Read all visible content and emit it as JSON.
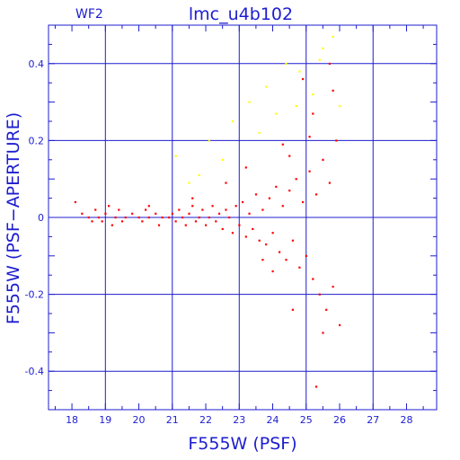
{
  "chart_data": {
    "type": "scatter",
    "title": "lmc_u4b102",
    "chip_label": "WF2",
    "xlabel": "F555W (PSF)",
    "ylabel": "F555W (PSF−APERTURE)",
    "xlim": [
      17.3,
      28.9
    ],
    "ylim": [
      -0.5,
      0.5
    ],
    "x_ticks": [
      18,
      19,
      20,
      21,
      22,
      23,
      24,
      25,
      26,
      27,
      28
    ],
    "y_ticks": [
      -0.4,
      -0.2,
      0,
      0.2,
      0.4
    ],
    "x_tick_labels": [
      "18",
      "19",
      "20",
      "21",
      "22",
      "23",
      "24",
      "25",
      "26",
      "27",
      "28"
    ],
    "y_tick_labels": [
      "-0.4",
      "-0.2",
      "0",
      "0.2",
      "0.4"
    ],
    "grid": true,
    "colors": {
      "frame": "#1d1dd0",
      "main_points": "#ff0000",
      "outlier_points": "#ffff00"
    },
    "series": [
      {
        "values": [
          [
            18.1,
            0.04
          ],
          [
            18.3,
            0.01
          ],
          [
            18.5,
            0.0
          ],
          [
            18.6,
            -0.01
          ],
          [
            18.7,
            0.02
          ],
          [
            18.8,
            0.0
          ],
          [
            18.9,
            -0.01
          ],
          [
            19.0,
            0.01
          ],
          [
            19.1,
            0.03
          ],
          [
            19.3,
            0.0
          ],
          [
            19.4,
            0.02
          ],
          [
            19.5,
            -0.01
          ],
          [
            19.6,
            0.0
          ],
          [
            19.8,
            0.01
          ],
          [
            20.0,
            0.0
          ],
          [
            20.1,
            -0.01
          ],
          [
            20.2,
            0.02
          ],
          [
            20.3,
            0.0
          ],
          [
            20.5,
            0.01
          ],
          [
            20.6,
            -0.02
          ],
          [
            20.7,
            0.0
          ],
          [
            20.9,
            0.0
          ],
          [
            21.0,
            0.01
          ],
          [
            21.1,
            -0.01
          ],
          [
            21.2,
            0.02
          ],
          [
            21.3,
            0.0
          ],
          [
            21.4,
            -0.02
          ],
          [
            21.5,
            0.01
          ],
          [
            21.6,
            0.03
          ],
          [
            21.7,
            -0.01
          ],
          [
            21.8,
            0.0
          ],
          [
            21.9,
            0.02
          ],
          [
            22.0,
            -0.02
          ],
          [
            22.1,
            0.0
          ],
          [
            22.2,
            0.03
          ],
          [
            22.3,
            -0.01
          ],
          [
            22.4,
            0.01
          ],
          [
            22.5,
            -0.03
          ],
          [
            22.6,
            0.02
          ],
          [
            22.7,
            0.0
          ],
          [
            22.8,
            -0.04
          ],
          [
            22.9,
            0.03
          ],
          [
            23.0,
            -0.02
          ],
          [
            23.1,
            0.04
          ],
          [
            23.2,
            -0.05
          ],
          [
            23.3,
            0.01
          ],
          [
            23.4,
            -0.03
          ],
          [
            23.5,
            0.06
          ],
          [
            23.6,
            -0.06
          ],
          [
            23.7,
            0.02
          ],
          [
            23.8,
            -0.07
          ],
          [
            23.9,
            0.05
          ],
          [
            24.0,
            -0.04
          ],
          [
            24.1,
            0.08
          ],
          [
            24.2,
            -0.09
          ],
          [
            24.3,
            0.03
          ],
          [
            24.4,
            -0.11
          ],
          [
            24.5,
            0.07
          ],
          [
            24.6,
            -0.06
          ],
          [
            24.7,
            0.1
          ],
          [
            24.8,
            -0.13
          ],
          [
            24.9,
            0.04
          ],
          [
            25.0,
            -0.1
          ],
          [
            25.1,
            0.12
          ],
          [
            25.2,
            -0.16
          ],
          [
            25.3,
            0.06
          ],
          [
            25.4,
            -0.2
          ],
          [
            25.5,
            0.15
          ],
          [
            25.6,
            -0.24
          ],
          [
            25.7,
            0.09
          ],
          [
            25.8,
            -0.18
          ],
          [
            25.9,
            0.2
          ],
          [
            26.0,
            -0.28
          ],
          [
            24.3,
            0.19
          ],
          [
            24.6,
            -0.24
          ],
          [
            25.2,
            0.27
          ],
          [
            25.5,
            -0.3
          ],
          [
            25.3,
            -0.44
          ],
          [
            24.9,
            0.36
          ],
          [
            25.7,
            0.4
          ],
          [
            23.2,
            0.13
          ],
          [
            22.6,
            0.09
          ],
          [
            21.6,
            0.05
          ],
          [
            20.3,
            0.03
          ],
          [
            19.2,
            -0.02
          ],
          [
            24.0,
            -0.14
          ],
          [
            23.7,
            -0.11
          ],
          [
            25.8,
            0.33
          ],
          [
            25.1,
            0.21
          ],
          [
            24.5,
            0.16
          ]
        ]
      },
      {
        "values": [
          [
            21.1,
            0.16
          ],
          [
            22.1,
            0.2
          ],
          [
            22.8,
            0.25
          ],
          [
            23.3,
            0.3
          ],
          [
            23.8,
            0.34
          ],
          [
            24.1,
            0.27
          ],
          [
            24.4,
            0.4
          ],
          [
            24.8,
            0.38
          ],
          [
            25.2,
            0.32
          ],
          [
            25.5,
            0.44
          ],
          [
            25.8,
            0.47
          ],
          [
            26.0,
            0.29
          ],
          [
            21.8,
            0.11
          ],
          [
            22.5,
            0.15
          ],
          [
            23.6,
            0.22
          ],
          [
            24.7,
            0.29
          ],
          [
            25.4,
            0.41
          ],
          [
            21.5,
            0.09
          ]
        ]
      }
    ]
  }
}
